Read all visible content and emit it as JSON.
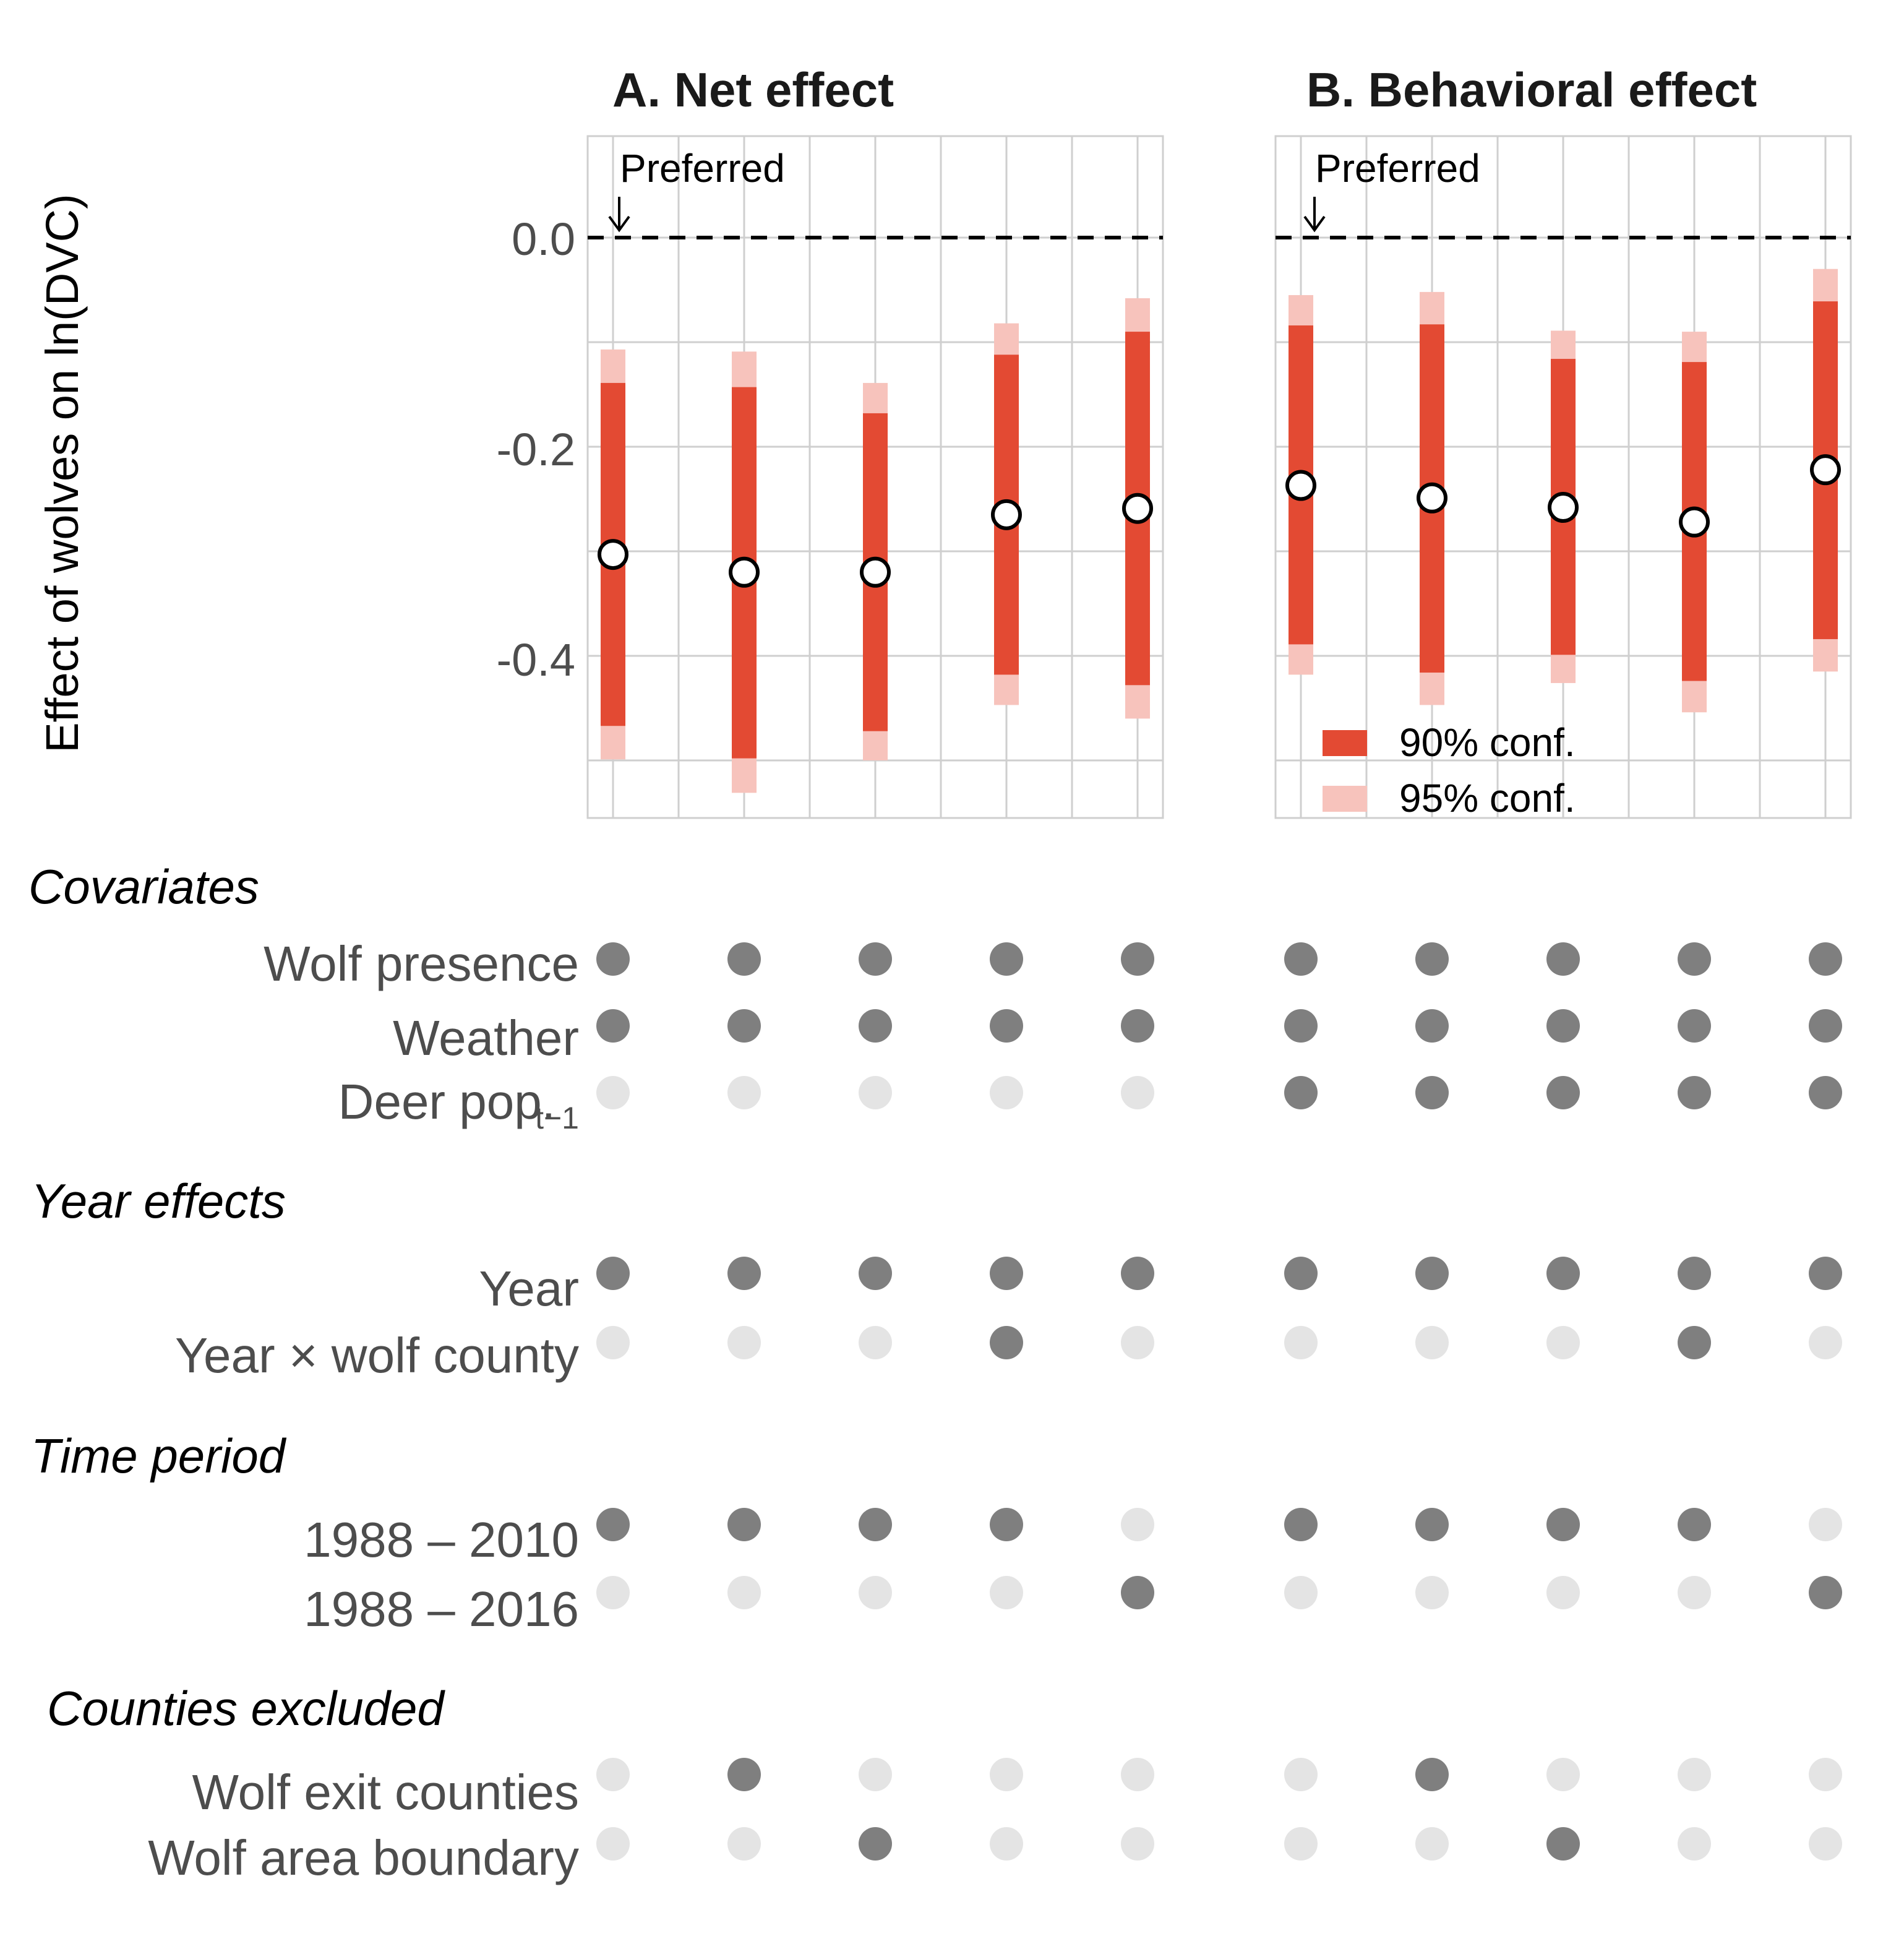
{
  "y_axis_label": "Effect of wolves on ln(DVC)",
  "preferred_label": "Preferred",
  "colors": {
    "ci90": "#e34a33",
    "ci95": "#f7c3bc",
    "dot_on": "#7f7f7f",
    "dot_off": "#e4e4e4",
    "grid": "#cfcfcf",
    "zero_line": "#000000"
  },
  "legend": {
    "ci90": "90% conf.",
    "ci95": "95% conf."
  },
  "chart_data": [
    {
      "type": "point-range",
      "title": "A. Net effect",
      "ylabel": "Effect of wolves on ln(DVC)",
      "ylim": [
        -0.56,
        0.1
      ],
      "yticks": [
        "0.0",
        "-0.2",
        "-0.4"
      ],
      "ytick_values": [
        0.0,
        -0.2,
        -0.4
      ],
      "zero_line": "dashed",
      "grid": true,
      "preferred_model": 1,
      "points": [
        {
          "model": 1,
          "estimate": -0.303,
          "ci90": [
            -0.467,
            -0.139
          ],
          "ci95": [
            -0.499,
            -0.107
          ]
        },
        {
          "model": 2,
          "estimate": -0.32,
          "ci90": [
            -0.498,
            -0.143
          ],
          "ci95": [
            -0.531,
            -0.109
          ]
        },
        {
          "model": 3,
          "estimate": -0.32,
          "ci90": [
            -0.472,
            -0.168
          ],
          "ci95": [
            -0.5,
            -0.139
          ]
        },
        {
          "model": 4,
          "estimate": -0.265,
          "ci90": [
            -0.418,
            -0.112
          ],
          "ci95": [
            -0.447,
            -0.082
          ]
        },
        {
          "model": 5,
          "estimate": -0.259,
          "ci90": [
            -0.428,
            -0.09
          ],
          "ci95": [
            -0.46,
            -0.058
          ]
        }
      ]
    },
    {
      "type": "point-range",
      "title": "B. Behavioral effect",
      "ylim": [
        -0.56,
        0.1
      ],
      "zero_line": "dashed",
      "grid": true,
      "preferred_model": 1,
      "legend_position": "bottom-left",
      "points": [
        {
          "model": 1,
          "estimate": -0.237,
          "ci90": [
            -0.389,
            -0.084
          ],
          "ci95": [
            -0.418,
            -0.055
          ]
        },
        {
          "model": 2,
          "estimate": -0.249,
          "ci90": [
            -0.416,
            -0.083
          ],
          "ci95": [
            -0.447,
            -0.052
          ]
        },
        {
          "model": 3,
          "estimate": -0.258,
          "ci90": [
            -0.399,
            -0.116
          ],
          "ci95": [
            -0.426,
            -0.089
          ]
        },
        {
          "model": 4,
          "estimate": -0.272,
          "ci90": [
            -0.424,
            -0.119
          ],
          "ci95": [
            -0.454,
            -0.09
          ]
        },
        {
          "model": 5,
          "estimate": -0.222,
          "ci90": [
            -0.384,
            -0.061
          ],
          "ci95": [
            -0.415,
            -0.03
          ]
        }
      ]
    }
  ],
  "specification_matrix": {
    "sections": [
      {
        "label": "Covariates",
        "rows": [
          {
            "label": "Wolf presence",
            "dots": [
              1,
              1,
              1,
              1,
              1,
              1,
              1,
              1,
              1,
              1
            ]
          },
          {
            "label": "Weather",
            "dots": [
              1,
              1,
              1,
              1,
              1,
              1,
              1,
              1,
              1,
              1
            ]
          },
          {
            "label": "Deer pop.",
            "subscript": "t−1",
            "dots": [
              0,
              0,
              0,
              0,
              0,
              1,
              1,
              1,
              1,
              1
            ]
          }
        ]
      },
      {
        "label": "Year effects",
        "rows": [
          {
            "label": "Year",
            "dots": [
              1,
              1,
              1,
              1,
              1,
              1,
              1,
              1,
              1,
              1
            ]
          },
          {
            "label": "Year × wolf county",
            "dots": [
              0,
              0,
              0,
              1,
              0,
              0,
              0,
              0,
              1,
              0
            ]
          }
        ]
      },
      {
        "label": "Time period",
        "rows": [
          {
            "label": "1988 – 2010",
            "dots": [
              1,
              1,
              1,
              1,
              0,
              1,
              1,
              1,
              1,
              0
            ]
          },
          {
            "label": "1988 – 2016",
            "dots": [
              0,
              0,
              0,
              0,
              1,
              0,
              0,
              0,
              0,
              1
            ]
          }
        ]
      },
      {
        "label": "Counties excluded",
        "rows": [
          {
            "label": "Wolf exit counties",
            "dots": [
              0,
              1,
              0,
              0,
              0,
              0,
              1,
              0,
              0,
              0
            ]
          },
          {
            "label": "Wolf area boundary",
            "dots": [
              0,
              0,
              1,
              0,
              0,
              0,
              0,
              1,
              0,
              0
            ]
          }
        ]
      }
    ]
  }
}
